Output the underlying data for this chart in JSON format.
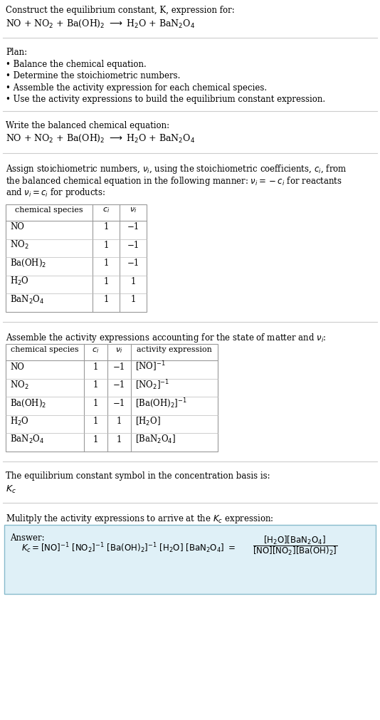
{
  "title_line1": "Construct the equilibrium constant, K, expression for:",
  "reaction_latex": "NO + NO$_2$ + Ba(OH)$_2$ $\\longrightarrow$ H$_2$O + BaN$_2$O$_4$",
  "plan_header": "Plan:",
  "plan_bullets": [
    "• Balance the chemical equation.",
    "• Determine the stoichiometric numbers.",
    "• Assemble the activity expression for each chemical species.",
    "• Use the activity expressions to build the equilibrium constant expression."
  ],
  "balanced_eq_header": "Write the balanced chemical equation:",
  "assign_header_parts": [
    "Assign stoichiometric numbers, $\\nu_i$, using the stoichiometric coefficients, $c_i$, from",
    "the balanced chemical equation in the following manner: $\\nu_i = -c_i$ for reactants",
    "and $\\nu_i = c_i$ for products:"
  ],
  "table1_headers": [
    "chemical species",
    "$c_i$",
    "$\\nu_i$"
  ],
  "table1_rows": [
    [
      "NO",
      "1",
      "−1"
    ],
    [
      "NO$_2$",
      "1",
      "−1"
    ],
    [
      "Ba(OH)$_2$",
      "1",
      "−1"
    ],
    [
      "H$_2$O",
      "1",
      "1"
    ],
    [
      "BaN$_2$O$_4$",
      "1",
      "1"
    ]
  ],
  "assemble_header": "Assemble the activity expressions accounting for the state of matter and $\\nu_i$:",
  "table2_headers": [
    "chemical species",
    "$c_i$",
    "$\\nu_i$",
    "activity expression"
  ],
  "table2_rows": [
    [
      "NO",
      "1",
      "−1",
      "[NO]$^{-1}$"
    ],
    [
      "NO$_2$",
      "1",
      "−1",
      "[NO$_2$]$^{-1}$"
    ],
    [
      "Ba(OH)$_2$",
      "1",
      "−1",
      "[Ba(OH)$_2$]$^{-1}$"
    ],
    [
      "H$_2$O",
      "1",
      "1",
      "[H$_2$O]"
    ],
    [
      "BaN$_2$O$_4$",
      "1",
      "1",
      "[BaN$_2$O$_4$]"
    ]
  ],
  "kc_header": "The equilibrium constant symbol in the concentration basis is:",
  "kc_symbol": "$K_c$",
  "multiply_header": "Mulitply the activity expressions to arrive at the $K_c$ expression:",
  "answer_label": "Answer:",
  "bg_color": "#ffffff",
  "answer_box_bg": "#dff0f7",
  "answer_box_border": "#88bbcc",
  "sep_line_color": "#cccccc",
  "table_border_color": "#999999",
  "table_inner_color": "#bbbbbb"
}
